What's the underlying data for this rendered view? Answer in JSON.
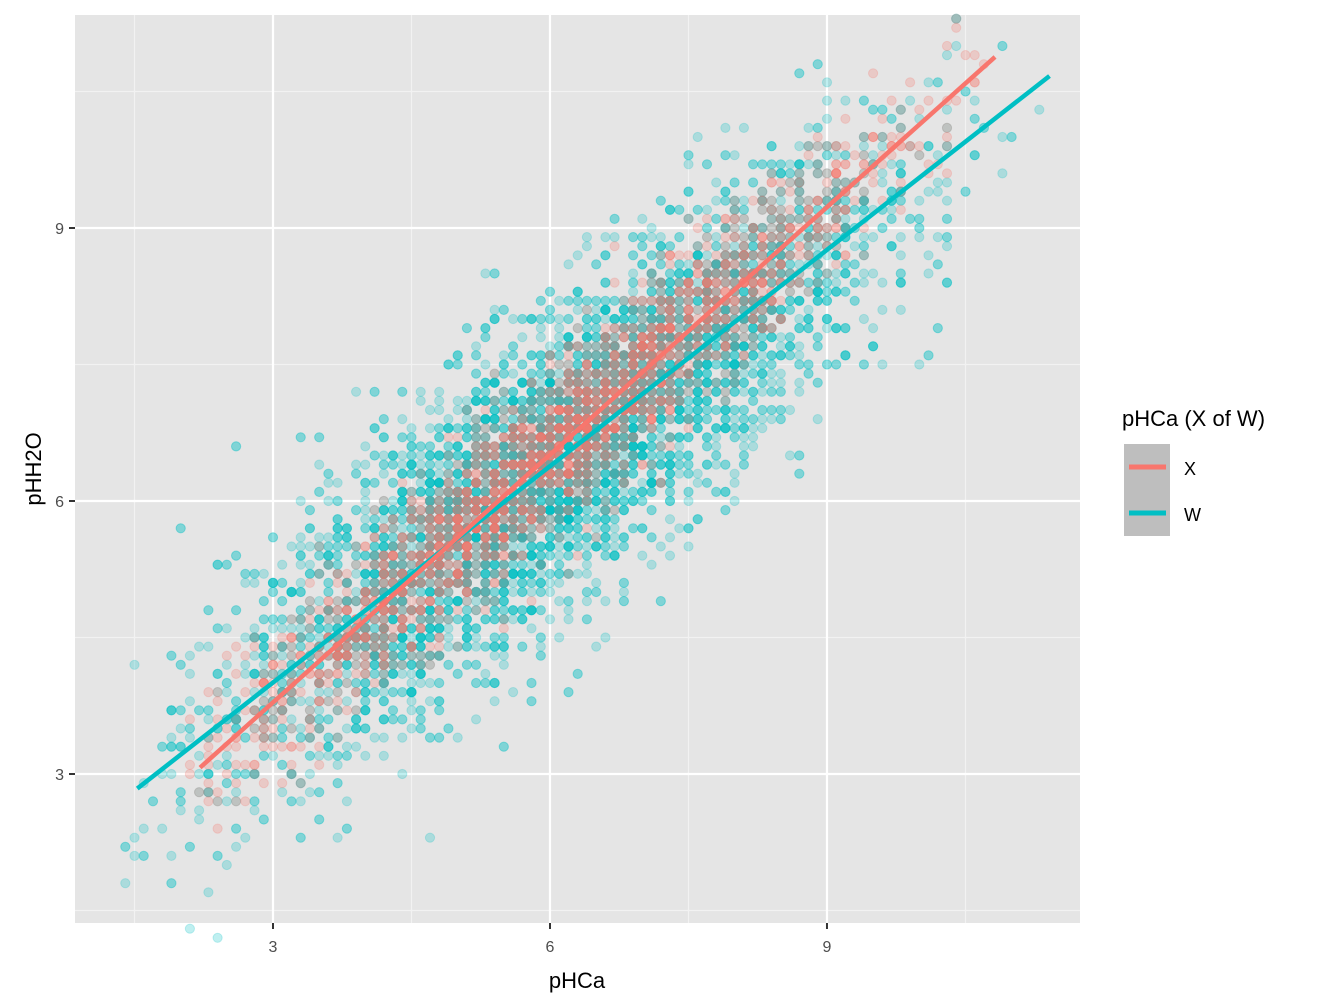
{
  "chart_data": {
    "type": "scatter",
    "title": "",
    "xlabel": "pHCa",
    "ylabel": "pHH2O",
    "xlim": [
      1.3,
      12.2
    ],
    "ylim": [
      1.5,
      11.5
    ],
    "x_ticks": [
      3,
      6,
      9
    ],
    "y_ticks": [
      3,
      6,
      9
    ],
    "x_tick_labels": [
      "3",
      "6",
      "9"
    ],
    "y_tick_labels": [
      "3",
      "6",
      "9"
    ],
    "grid": true,
    "legend": {
      "title": "pHCa (X of W)",
      "position": "right",
      "entries": [
        {
          "label": "X",
          "color": "#F8766D"
        },
        {
          "label": "W",
          "color": "#00BFC4"
        }
      ]
    },
    "series": [
      {
        "name": "W",
        "color": "#00BFC4",
        "point_alpha": 0.25,
        "fit_line": {
          "x": [
            1.53,
            11.41
          ],
          "y": [
            2.84,
            10.67
          ]
        },
        "cloud": {
          "x_range": [
            1.4,
            11.3
          ],
          "center_slope": 0.79,
          "spread_y": 0.8,
          "n_points": 6000
        }
      },
      {
        "name": "X",
        "color": "#F8766D",
        "point_alpha": 0.25,
        "fit_line": {
          "x": [
            2.21,
            10.82
          ],
          "y": [
            3.07,
            10.88
          ]
        },
        "cloud": {
          "x_range": [
            2.1,
            10.8
          ],
          "center_slope": 0.91,
          "spread_y": 0.45,
          "n_points": 2200
        }
      }
    ],
    "background": "#EBEBEB",
    "panel_color": "#E5E5E5"
  }
}
